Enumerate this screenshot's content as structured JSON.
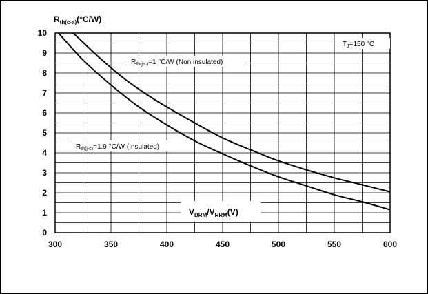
{
  "chart_data": {
    "type": "line",
    "ylabel": {
      "main": "R",
      "sub": "th(c-a)",
      "unit": "(°C/W)"
    },
    "xlabel": {
      "v1": "V",
      "s1": "DRM",
      "slash": "/V",
      "s2": "RRM",
      "unit": "(V)"
    },
    "xlim": [
      300,
      600
    ],
    "ylim": [
      0,
      10
    ],
    "x_ticks": [
      "300",
      "350",
      "400",
      "450",
      "500",
      "550",
      "600"
    ],
    "y_ticks": [
      "0",
      "1",
      "2",
      "3",
      "4",
      "5",
      "6",
      "7",
      "8",
      "9",
      "10"
    ],
    "grid": true,
    "condition": {
      "main": "T",
      "sub": "J",
      "rest": "=150 °C"
    },
    "series": [
      {
        "label_main": "R",
        "label_sub": "th(j-c)",
        "label_rest": "=1 °C/W (Non insulated)",
        "x": [
          316,
          320,
          340,
          360,
          380,
          400,
          425,
          450,
          475,
          500,
          525,
          550,
          575,
          600
        ],
        "y": [
          10,
          9.8,
          8.75,
          7.8,
          7.0,
          6.3,
          5.5,
          4.75,
          4.15,
          3.6,
          3.15,
          2.75,
          2.4,
          2.05
        ]
      },
      {
        "label_main": "R",
        "label_sub": "th(j-c)",
        "label_rest": "=1.9 °C/W (Insulated)",
        "x": [
          303,
          325,
          350,
          375,
          400,
          425,
          450,
          475,
          500,
          525,
          550,
          575,
          600
        ],
        "y": [
          10,
          8.65,
          7.4,
          6.3,
          5.4,
          4.6,
          3.95,
          3.35,
          2.8,
          2.35,
          1.9,
          1.55,
          1.15
        ]
      }
    ]
  }
}
